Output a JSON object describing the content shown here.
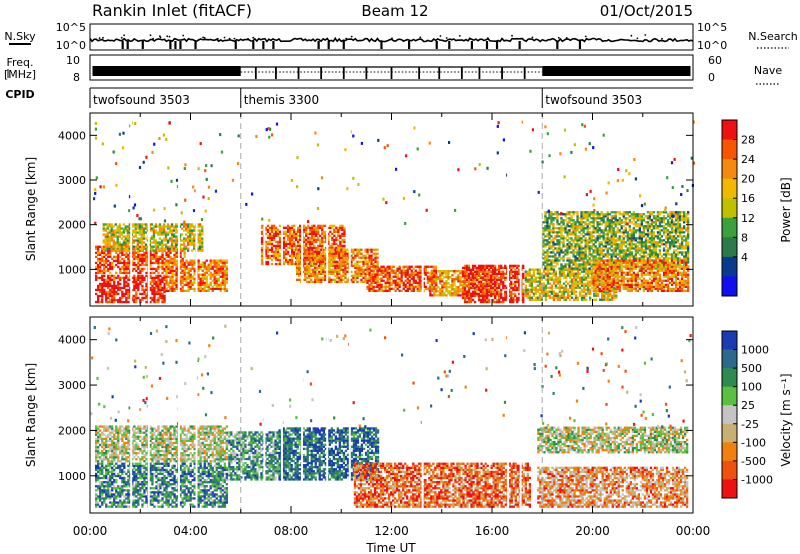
{
  "header": {
    "station": "Rankin Inlet (fitACF)",
    "beam": "Beam 12",
    "date": "01/Oct/2015"
  },
  "top_panels": {
    "nsky_label": "N.Sky",
    "nsky_ticks": [
      "10^5",
      "10^0"
    ],
    "nsearch_label": "N.Search",
    "nsearch_ticks": [
      "10^5",
      "10^0"
    ],
    "freq_label_1": "Freq.",
    "freq_label_2": "[MHz]",
    "freq_ticks": [
      "10",
      "8"
    ],
    "nave_label": "Nave",
    "nave_ticks": [
      "60",
      "0"
    ],
    "cpid_label": "CPID",
    "cpid_segments": [
      {
        "name": "twofsound 3503",
        "start_h": 0,
        "end_h": 6
      },
      {
        "name": "themis 3300",
        "start_h": 6,
        "end_h": 18
      },
      {
        "name": "twofsound 3503",
        "start_h": 18,
        "end_h": 24
      }
    ]
  },
  "chart_data": [
    {
      "type": "heatmap",
      "panel": "power",
      "xlabel": "",
      "ylabel": "Slant Range [km]",
      "xlim_h": [
        0,
        24
      ],
      "ylim": [
        180,
        4500
      ],
      "y_ticks": [
        "1000",
        "2000",
        "3000",
        "4000"
      ],
      "colorbar_label": "Power [dB]",
      "colorbar_ticks": [
        "28",
        "24",
        "20",
        "16",
        "12",
        "8",
        "4"
      ],
      "colorbar_colors": [
        "#ee1111",
        "#f85500",
        "#f58a10",
        "#f0b800",
        "#c0c000",
        "#3ca03c",
        "#2a7a4a",
        "#0a3a90",
        "#1010ee"
      ],
      "regions": [
        {
          "t0": 0.2,
          "t1": 3.0,
          "r0": 250,
          "r1": 900,
          "level": 0.95
        },
        {
          "t0": 0.2,
          "t1": 3.8,
          "r0": 900,
          "r1": 1550,
          "level": 0.85
        },
        {
          "t0": 0.5,
          "t1": 4.5,
          "r0": 1400,
          "r1": 2050,
          "level": 0.55
        },
        {
          "t0": 3.0,
          "t1": 5.5,
          "r0": 500,
          "r1": 1200,
          "level": 0.75
        },
        {
          "t0": 6.8,
          "t1": 10.2,
          "r0": 1100,
          "r1": 2000,
          "level": 0.8
        },
        {
          "t0": 8.2,
          "t1": 11.5,
          "r0": 700,
          "r1": 1450,
          "level": 0.75
        },
        {
          "t0": 11.0,
          "t1": 13.8,
          "r0": 500,
          "r1": 1100,
          "level": 0.85
        },
        {
          "t0": 13.5,
          "t1": 16.2,
          "r0": 400,
          "r1": 1000,
          "level": 0.7
        },
        {
          "t0": 14.8,
          "t1": 17.3,
          "r0": 250,
          "r1": 1100,
          "level": 0.95
        },
        {
          "t0": 17.3,
          "t1": 21.0,
          "r0": 300,
          "r1": 1000,
          "level": 0.55
        },
        {
          "t0": 18.0,
          "t1": 23.8,
          "r0": 1000,
          "r1": 2300,
          "level": 0.45
        },
        {
          "t0": 20.0,
          "t1": 23.8,
          "r0": 500,
          "r1": 1200,
          "level": 0.75
        }
      ]
    },
    {
      "type": "heatmap",
      "panel": "velocity",
      "xlabel": "Time UT",
      "ylabel": "Slant Range [km]",
      "xlim_h": [
        0,
        24
      ],
      "ylim": [
        180,
        4500
      ],
      "x_ticks": [
        "00:00",
        "04:00",
        "08:00",
        "12:00",
        "16:00",
        "20:00",
        "00:00"
      ],
      "y_ticks": [
        "1000",
        "2000",
        "3000",
        "4000"
      ],
      "colorbar_label": "Velocity [m s⁻¹]",
      "colorbar_ticks": [
        "1000",
        "500",
        "100",
        "25",
        "-25",
        "-100",
        "-500",
        "-1000"
      ],
      "colorbar_colors": [
        "#1a3cb0",
        "#2a6a8a",
        "#2f8a50",
        "#5ac040",
        "#c4c4c4",
        "#c8b070",
        "#f08010",
        "#f05010",
        "#ee1111"
      ],
      "regions": [
        {
          "t0": 0.2,
          "t1": 5.5,
          "r0": 1300,
          "r1": 2100,
          "level": 0.5
        },
        {
          "t0": 0.2,
          "t1": 5.5,
          "r0": 300,
          "r1": 1300,
          "level": 0.25
        },
        {
          "t0": 5.5,
          "t1": 8.0,
          "r0": 900,
          "r1": 2000,
          "level": 0.3
        },
        {
          "t0": 7.5,
          "t1": 11.5,
          "r0": 900,
          "r1": 2050,
          "level": 0.15
        },
        {
          "t0": 10.5,
          "t1": 17.5,
          "r0": 300,
          "r1": 1300,
          "level": 0.8
        },
        {
          "t0": 17.8,
          "t1": 23.8,
          "r0": 1500,
          "r1": 2100,
          "level": 0.5
        },
        {
          "t0": 17.8,
          "t1": 23.8,
          "r0": 300,
          "r1": 1200,
          "level": 0.7
        }
      ]
    }
  ]
}
